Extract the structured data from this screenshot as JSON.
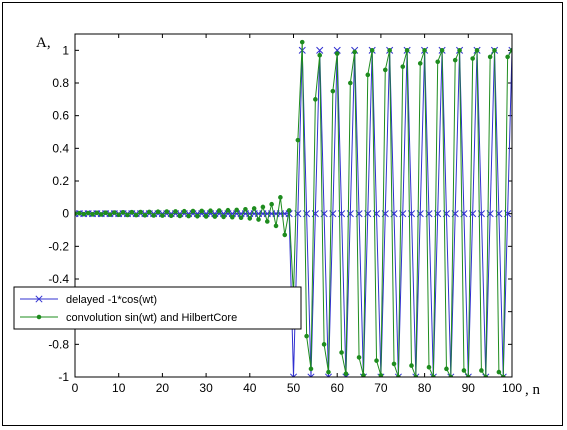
{
  "chart_data": {
    "type": "line",
    "xlabel": ", n",
    "ylabel": "A,",
    "xlim": [
      0,
      100
    ],
    "ylim": [
      -1,
      1.1
    ],
    "xticks": [
      0,
      10,
      20,
      30,
      40,
      50,
      60,
      70,
      80,
      90,
      100
    ],
    "yticks": [
      -1,
      -0.8,
      -0.6,
      -0.4,
      -0.2,
      0,
      0.2,
      0.4,
      0.6,
      0.8,
      1
    ],
    "x_tick_labels": [
      "0",
      "10",
      "20",
      "30",
      "40",
      "50",
      "60",
      "70",
      "80",
      "90",
      "100"
    ],
    "y_tick_labels": [
      "-1",
      "-0.8",
      "-0.6",
      "-0.4",
      "-0.2",
      "0",
      "0.2",
      "0.4",
      "0.6",
      "0.8",
      "1"
    ],
    "legend_position": "bottom-left",
    "colors": {
      "series1": "#3030d0",
      "series2": "#1e8c1e"
    },
    "series": [
      {
        "name": "delayed -1*cos(wt)",
        "marker": "x",
        "x": [
          0,
          1,
          2,
          3,
          4,
          5,
          6,
          7,
          8,
          9,
          10,
          11,
          12,
          13,
          14,
          15,
          16,
          17,
          18,
          19,
          20,
          21,
          22,
          23,
          24,
          25,
          26,
          27,
          28,
          29,
          30,
          31,
          32,
          33,
          34,
          35,
          36,
          37,
          38,
          39,
          40,
          41,
          42,
          43,
          44,
          45,
          46,
          47,
          48,
          49,
          50,
          51,
          52,
          53,
          54,
          55,
          56,
          57,
          58,
          59,
          60,
          61,
          62,
          63,
          64,
          65,
          66,
          67,
          68,
          69,
          70,
          71,
          72,
          73,
          74,
          75,
          76,
          77,
          78,
          79,
          80,
          81,
          82,
          83,
          84,
          85,
          86,
          87,
          88,
          89,
          90,
          91,
          92,
          93,
          94,
          95,
          96,
          97,
          98,
          99,
          100
        ],
        "y": [
          0,
          0,
          0,
          0,
          0,
          0,
          0,
          0,
          0,
          0,
          0,
          0,
          0,
          0,
          0,
          0,
          0,
          0,
          0,
          0,
          0,
          0,
          0,
          0,
          0,
          0,
          0,
          0,
          0,
          0,
          0,
          0,
          0,
          0,
          0,
          0,
          0,
          0,
          0,
          0,
          0,
          0,
          0,
          0,
          0,
          0,
          0,
          0,
          0,
          0,
          -1,
          0,
          1,
          0,
          -1,
          0,
          1,
          0,
          -1,
          0,
          1,
          0,
          -1,
          0,
          1,
          0,
          -1,
          0,
          1,
          0,
          -1,
          0,
          1,
          0,
          -1,
          0,
          1,
          0,
          -1,
          0,
          1,
          0,
          -1,
          0,
          1,
          0,
          -1,
          0,
          1,
          0,
          -1,
          0,
          1,
          0,
          -1,
          0,
          1,
          0,
          -1,
          0,
          1
        ]
      },
      {
        "name": "convolution sin(wt) and HilbertCore",
        "marker": "dot",
        "x": [
          0,
          1,
          2,
          3,
          4,
          5,
          6,
          7,
          8,
          9,
          10,
          11,
          12,
          13,
          14,
          15,
          16,
          17,
          18,
          19,
          20,
          21,
          22,
          23,
          24,
          25,
          26,
          27,
          28,
          29,
          30,
          31,
          32,
          33,
          34,
          35,
          36,
          37,
          38,
          39,
          40,
          41,
          42,
          43,
          44,
          45,
          46,
          47,
          48,
          49,
          50,
          51,
          52,
          53,
          54,
          55,
          56,
          57,
          58,
          59,
          60,
          61,
          62,
          63,
          64,
          65,
          66,
          67,
          68,
          69,
          70,
          71,
          72,
          73,
          74,
          75,
          76,
          77,
          78,
          79,
          80,
          81,
          82,
          83,
          84,
          85,
          86,
          87,
          88,
          89,
          90,
          91,
          92,
          93,
          94,
          95,
          96,
          97,
          98,
          99,
          100
        ],
        "y": [
          0,
          0.003,
          -0.003,
          0.004,
          -0.004,
          0.005,
          -0.005,
          0.006,
          -0.006,
          0.007,
          -0.007,
          0.008,
          -0.008,
          0.009,
          -0.009,
          0.01,
          -0.01,
          0.011,
          -0.011,
          0.012,
          -0.012,
          0.013,
          -0.013,
          0.014,
          -0.014,
          0.015,
          -0.015,
          0.016,
          -0.016,
          0.017,
          -0.017,
          0.018,
          -0.018,
          0.019,
          -0.02,
          0.021,
          -0.022,
          0.023,
          -0.025,
          0.027,
          -0.029,
          0.032,
          -0.036,
          0.041,
          -0.048,
          0.058,
          -0.075,
          0.1,
          -0.13,
          0.02,
          -0.5,
          0.45,
          1.05,
          -0.75,
          -0.95,
          0.7,
          0.97,
          -0.8,
          -0.97,
          0.75,
          0.98,
          -0.85,
          -0.98,
          0.8,
          0.99,
          -0.88,
          -0.99,
          0.85,
          1.0,
          -0.9,
          -0.99,
          0.88,
          1.0,
          -0.92,
          -1.0,
          0.9,
          1.0,
          -0.93,
          -1.0,
          0.92,
          1.0,
          -0.94,
          -1.0,
          0.93,
          1.0,
          -0.95,
          -1.0,
          0.94,
          1.0,
          -0.96,
          -1.0,
          0.95,
          1.0,
          -0.96,
          -1.0,
          0.96,
          1.0,
          -0.97,
          -1.0,
          0.96,
          1.0
        ]
      }
    ]
  }
}
